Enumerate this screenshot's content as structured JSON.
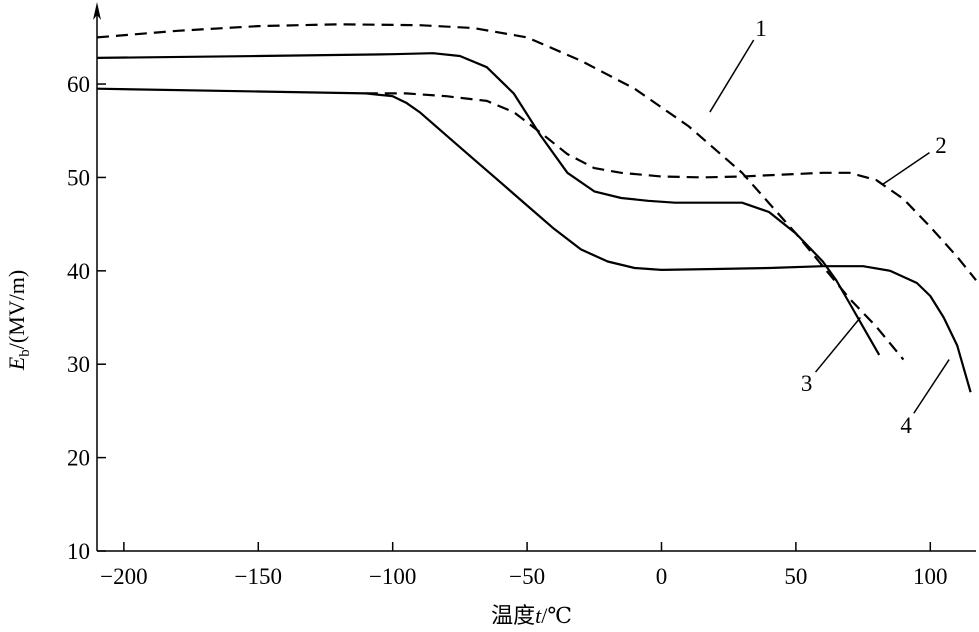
{
  "chart_data": {
    "type": "line",
    "title": "",
    "xlabel_prefix": "温度",
    "xlabel_var": "t",
    "xlabel_unit": "/℃",
    "ylabel_var": "E",
    "ylabel_sub": "b",
    "ylabel_unit": "/(MV/m)",
    "xlim": [
      -210,
      117
    ],
    "ylim": [
      10,
      69
    ],
    "xticks": [
      -200,
      -150,
      -100,
      -50,
      0,
      50,
      100
    ],
    "xtick_labels": [
      "−200",
      "−150",
      "−100",
      "−50",
      "0",
      "50",
      "100"
    ],
    "yticks": [
      10,
      20,
      30,
      40,
      50,
      60
    ],
    "ytick_labels": [
      "10",
      "20",
      "30",
      "40",
      "50",
      "60"
    ],
    "grid": false,
    "series": [
      {
        "name": "1",
        "style": "dashed",
        "x": [
          -210,
          -180,
          -150,
          -120,
          -90,
          -70,
          -50,
          -30,
          -10,
          10,
          30,
          50,
          60,
          70,
          80,
          90
        ],
        "y": [
          65,
          65.7,
          66.2,
          66.4,
          66.3,
          66,
          65,
          62.5,
          59.5,
          55.5,
          50.5,
          44,
          40.5,
          37,
          34,
          30.5
        ]
      },
      {
        "name": "2",
        "style": "dashed",
        "x": [
          -110,
          -95,
          -80,
          -65,
          -55,
          -45,
          -35,
          -25,
          -15,
          0,
          15,
          30,
          45,
          60,
          70,
          80,
          90,
          100,
          110,
          117
        ],
        "y": [
          59,
          59,
          58.7,
          58.2,
          57,
          54.8,
          52.5,
          51,
          50.5,
          50.1,
          50,
          50.1,
          50.3,
          50.5,
          50.5,
          49.7,
          47.7,
          44.7,
          41.5,
          39
        ]
      },
      {
        "name": "3",
        "style": "solid",
        "x": [
          -210,
          -150,
          -100,
          -85,
          -75,
          -65,
          -55,
          -45,
          -35,
          -25,
          -15,
          -5,
          5,
          20,
          30,
          40,
          50,
          60,
          65,
          70,
          75,
          81
        ],
        "y": [
          62.8,
          63,
          63.2,
          63.3,
          63,
          61.8,
          59,
          54.5,
          50.5,
          48.5,
          47.8,
          47.5,
          47.3,
          47.3,
          47.3,
          46.3,
          44,
          41,
          39,
          36.5,
          34,
          31
        ]
      },
      {
        "name": "4",
        "style": "solid",
        "x": [
          -210,
          -150,
          -110,
          -100,
          -95,
          -90,
          -80,
          -70,
          -60,
          -50,
          -40,
          -30,
          -20,
          -10,
          0,
          20,
          40,
          60,
          75,
          85,
          95,
          100,
          105,
          110,
          115
        ],
        "y": [
          59.5,
          59.2,
          59,
          58.7,
          58,
          57,
          54.5,
          52,
          49.5,
          47,
          44.5,
          42.3,
          41,
          40.3,
          40.1,
          40.2,
          40.3,
          40.5,
          40.5,
          40,
          38.7,
          37.3,
          35,
          32,
          27
        ]
      }
    ],
    "annotations": [
      {
        "text": "1",
        "series": "1",
        "at_x": 18,
        "at_y": 57,
        "label_x": 37,
        "label_y": 66
      },
      {
        "text": "2",
        "series": "2",
        "at_x": 82,
        "at_y": 49.2,
        "label_x": 104,
        "label_y": 53.5
      },
      {
        "text": "3",
        "series": "3",
        "at_x": 74,
        "at_y": 35,
        "label_x": 54,
        "label_y": 28
      },
      {
        "text": "4",
        "series": "4",
        "at_x": 107,
        "at_y": 30.5,
        "label_x": 91,
        "label_y": 23.5
      }
    ]
  }
}
